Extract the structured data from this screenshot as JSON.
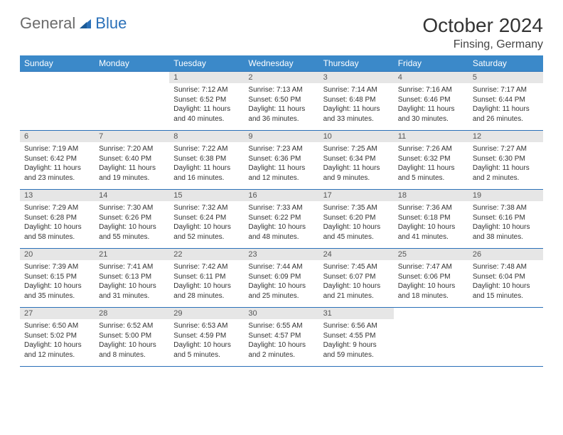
{
  "logo": {
    "general": "General",
    "blue": "Blue"
  },
  "title": "October 2024",
  "location": "Finsing, Germany",
  "colors": {
    "header_bg": "#3b89c9",
    "header_text": "#ffffff",
    "border": "#2a70b8",
    "daynum_bg": "#e6e6e6",
    "logo_gray": "#6b6b6b",
    "logo_blue": "#2a70b8"
  },
  "weekdays": [
    "Sunday",
    "Monday",
    "Tuesday",
    "Wednesday",
    "Thursday",
    "Friday",
    "Saturday"
  ],
  "cells": [
    {
      "day": "",
      "sunrise": "",
      "sunset": "",
      "daylight": ""
    },
    {
      "day": "",
      "sunrise": "",
      "sunset": "",
      "daylight": ""
    },
    {
      "day": "1",
      "sunrise": "Sunrise: 7:12 AM",
      "sunset": "Sunset: 6:52 PM",
      "daylight": "Daylight: 11 hours and 40 minutes."
    },
    {
      "day": "2",
      "sunrise": "Sunrise: 7:13 AM",
      "sunset": "Sunset: 6:50 PM",
      "daylight": "Daylight: 11 hours and 36 minutes."
    },
    {
      "day": "3",
      "sunrise": "Sunrise: 7:14 AM",
      "sunset": "Sunset: 6:48 PM",
      "daylight": "Daylight: 11 hours and 33 minutes."
    },
    {
      "day": "4",
      "sunrise": "Sunrise: 7:16 AM",
      "sunset": "Sunset: 6:46 PM",
      "daylight": "Daylight: 11 hours and 30 minutes."
    },
    {
      "day": "5",
      "sunrise": "Sunrise: 7:17 AM",
      "sunset": "Sunset: 6:44 PM",
      "daylight": "Daylight: 11 hours and 26 minutes."
    },
    {
      "day": "6",
      "sunrise": "Sunrise: 7:19 AM",
      "sunset": "Sunset: 6:42 PM",
      "daylight": "Daylight: 11 hours and 23 minutes."
    },
    {
      "day": "7",
      "sunrise": "Sunrise: 7:20 AM",
      "sunset": "Sunset: 6:40 PM",
      "daylight": "Daylight: 11 hours and 19 minutes."
    },
    {
      "day": "8",
      "sunrise": "Sunrise: 7:22 AM",
      "sunset": "Sunset: 6:38 PM",
      "daylight": "Daylight: 11 hours and 16 minutes."
    },
    {
      "day": "9",
      "sunrise": "Sunrise: 7:23 AM",
      "sunset": "Sunset: 6:36 PM",
      "daylight": "Daylight: 11 hours and 12 minutes."
    },
    {
      "day": "10",
      "sunrise": "Sunrise: 7:25 AM",
      "sunset": "Sunset: 6:34 PM",
      "daylight": "Daylight: 11 hours and 9 minutes."
    },
    {
      "day": "11",
      "sunrise": "Sunrise: 7:26 AM",
      "sunset": "Sunset: 6:32 PM",
      "daylight": "Daylight: 11 hours and 5 minutes."
    },
    {
      "day": "12",
      "sunrise": "Sunrise: 7:27 AM",
      "sunset": "Sunset: 6:30 PM",
      "daylight": "Daylight: 11 hours and 2 minutes."
    },
    {
      "day": "13",
      "sunrise": "Sunrise: 7:29 AM",
      "sunset": "Sunset: 6:28 PM",
      "daylight": "Daylight: 10 hours and 58 minutes."
    },
    {
      "day": "14",
      "sunrise": "Sunrise: 7:30 AM",
      "sunset": "Sunset: 6:26 PM",
      "daylight": "Daylight: 10 hours and 55 minutes."
    },
    {
      "day": "15",
      "sunrise": "Sunrise: 7:32 AM",
      "sunset": "Sunset: 6:24 PM",
      "daylight": "Daylight: 10 hours and 52 minutes."
    },
    {
      "day": "16",
      "sunrise": "Sunrise: 7:33 AM",
      "sunset": "Sunset: 6:22 PM",
      "daylight": "Daylight: 10 hours and 48 minutes."
    },
    {
      "day": "17",
      "sunrise": "Sunrise: 7:35 AM",
      "sunset": "Sunset: 6:20 PM",
      "daylight": "Daylight: 10 hours and 45 minutes."
    },
    {
      "day": "18",
      "sunrise": "Sunrise: 7:36 AM",
      "sunset": "Sunset: 6:18 PM",
      "daylight": "Daylight: 10 hours and 41 minutes."
    },
    {
      "day": "19",
      "sunrise": "Sunrise: 7:38 AM",
      "sunset": "Sunset: 6:16 PM",
      "daylight": "Daylight: 10 hours and 38 minutes."
    },
    {
      "day": "20",
      "sunrise": "Sunrise: 7:39 AM",
      "sunset": "Sunset: 6:15 PM",
      "daylight": "Daylight: 10 hours and 35 minutes."
    },
    {
      "day": "21",
      "sunrise": "Sunrise: 7:41 AM",
      "sunset": "Sunset: 6:13 PM",
      "daylight": "Daylight: 10 hours and 31 minutes."
    },
    {
      "day": "22",
      "sunrise": "Sunrise: 7:42 AM",
      "sunset": "Sunset: 6:11 PM",
      "daylight": "Daylight: 10 hours and 28 minutes."
    },
    {
      "day": "23",
      "sunrise": "Sunrise: 7:44 AM",
      "sunset": "Sunset: 6:09 PM",
      "daylight": "Daylight: 10 hours and 25 minutes."
    },
    {
      "day": "24",
      "sunrise": "Sunrise: 7:45 AM",
      "sunset": "Sunset: 6:07 PM",
      "daylight": "Daylight: 10 hours and 21 minutes."
    },
    {
      "day": "25",
      "sunrise": "Sunrise: 7:47 AM",
      "sunset": "Sunset: 6:06 PM",
      "daylight": "Daylight: 10 hours and 18 minutes."
    },
    {
      "day": "26",
      "sunrise": "Sunrise: 7:48 AM",
      "sunset": "Sunset: 6:04 PM",
      "daylight": "Daylight: 10 hours and 15 minutes."
    },
    {
      "day": "27",
      "sunrise": "Sunrise: 6:50 AM",
      "sunset": "Sunset: 5:02 PM",
      "daylight": "Daylight: 10 hours and 12 minutes."
    },
    {
      "day": "28",
      "sunrise": "Sunrise: 6:52 AM",
      "sunset": "Sunset: 5:00 PM",
      "daylight": "Daylight: 10 hours and 8 minutes."
    },
    {
      "day": "29",
      "sunrise": "Sunrise: 6:53 AM",
      "sunset": "Sunset: 4:59 PM",
      "daylight": "Daylight: 10 hours and 5 minutes."
    },
    {
      "day": "30",
      "sunrise": "Sunrise: 6:55 AM",
      "sunset": "Sunset: 4:57 PM",
      "daylight": "Daylight: 10 hours and 2 minutes."
    },
    {
      "day": "31",
      "sunrise": "Sunrise: 6:56 AM",
      "sunset": "Sunset: 4:55 PM",
      "daylight": "Daylight: 9 hours and 59 minutes."
    },
    {
      "day": "",
      "sunrise": "",
      "sunset": "",
      "daylight": ""
    },
    {
      "day": "",
      "sunrise": "",
      "sunset": "",
      "daylight": ""
    }
  ]
}
